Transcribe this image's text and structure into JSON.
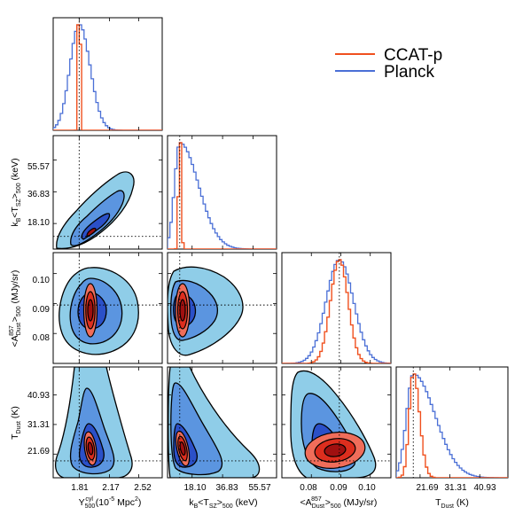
{
  "chart_data": {
    "type": "corner",
    "series": [
      {
        "name": "CCAT-p",
        "color": "#f0501e"
      },
      {
        "name": "Planck",
        "color": "#4a6fd6"
      }
    ],
    "legend_placement": "top-right",
    "contour_fill_colors": {
      "Planck": [
        "#8fcde8",
        "#5b95e0",
        "#2b50c8"
      ],
      "CCAT-p": [
        "#f06d5a",
        "#dd2e1e",
        "#a01010"
      ]
    },
    "parameters": [
      {
        "key": "Y",
        "label_text": "Y500cyl (10-5 Mpc2)",
        "ticks": [
          1.81,
          2.17,
          2.52
        ],
        "tick_labels": [
          "1.81",
          "2.17",
          "2.52"
        ],
        "range": [
          1.5,
          2.8
        ],
        "fiducial": 1.81
      },
      {
        "key": "kT",
        "label_text": "kB<TSZ>500 (keV)",
        "ticks": [
          18.1,
          36.83,
          55.57
        ],
        "tick_labels": [
          "18.10",
          "36.83",
          "55.57"
        ],
        "range": [
          3,
          70
        ],
        "fiducial": 10.5
      },
      {
        "key": "A",
        "label_text": "<ADust857>500 (MJy/sr)",
        "ticks": [
          0.08,
          0.09,
          0.1
        ],
        "tick_labels": [
          "0.08",
          "0.09",
          "0.10"
        ],
        "range": [
          0.07,
          0.107
        ],
        "fiducial": 0.0895
      },
      {
        "key": "T",
        "label_text": "TDust (K)",
        "ticks": [
          21.69,
          31.31,
          40.93
        ],
        "tick_labels": [
          "21.69",
          "31.31",
          "40.93"
        ],
        "range": [
          14,
          50
        ],
        "fiducial": 19.5
      }
    ],
    "marginals": {
      "Y": {
        "Planck": {
          "mode": 1.81,
          "sigma_left": 0.11,
          "sigma_right": 0.13
        },
        "CCAT-p": {
          "mode": 1.81,
          "sigma_left": 0.011,
          "sigma_right": 0.011
        }
      },
      "kT": {
        "Planck": {
          "mode": 10.5,
          "sigma_left": 3.2,
          "sigma_right": 11.5
        },
        "CCAT-p": {
          "mode": 10.5,
          "sigma_left": 0.7,
          "sigma_right": 0.8
        }
      },
      "A": {
        "Planck": {
          "mode": 0.0895,
          "sigma_left": 0.0045,
          "sigma_right": 0.0048
        },
        "CCAT-p": {
          "mode": 0.0895,
          "sigma_left": 0.003,
          "sigma_right": 0.003
        }
      },
      "T": {
        "Planck": {
          "mode": 19.5,
          "sigma_left": 2.2,
          "sigma_right": 7.0
        },
        "CCAT-p": {
          "mode": 19.5,
          "sigma_left": 1.3,
          "sigma_right": 2.0
        }
      }
    }
  }
}
